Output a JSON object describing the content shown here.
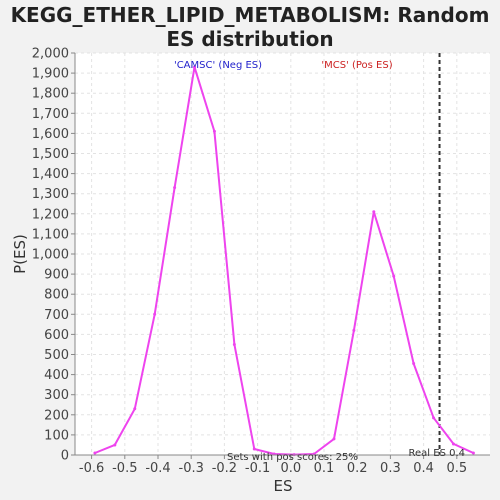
{
  "chart_data": {
    "type": "line",
    "title_lines": [
      "KEGG_ETHER_LIPID_METABOLISM: Random",
      "ES distribution"
    ],
    "xlabel": "ES",
    "ylabel": "P(ES)",
    "xlim": [
      -0.65,
      0.6
    ],
    "ylim": [
      0,
      2000
    ],
    "x_ticks": [
      -0.6,
      -0.5,
      -0.4,
      -0.3,
      -0.2,
      -0.1,
      0.0,
      0.1,
      0.2,
      0.3,
      0.4,
      0.5
    ],
    "x_tick_labels": [
      "-0.6",
      "-0.5",
      "-0.4",
      "-0.3",
      "-0.2",
      "-0.1",
      "0.0",
      "0.1",
      "0.2",
      "0.3",
      "0.4",
      "0.5"
    ],
    "y_ticks": [
      0,
      100,
      200,
      300,
      400,
      500,
      600,
      700,
      800,
      900,
      1000,
      1100,
      1200,
      1300,
      1400,
      1500,
      1600,
      1700,
      1800,
      1900,
      2000
    ],
    "y_tick_labels": [
      "0",
      "100",
      "200",
      "300",
      "400",
      "500",
      "600",
      "700",
      "800",
      "900",
      "1,000",
      "1,100",
      "1,200",
      "1,300",
      "1,400",
      "1,500",
      "1,600",
      "1,700",
      "1,800",
      "1,900",
      "2,000"
    ],
    "grid": true,
    "series": [
      {
        "color": "#ee44ee",
        "x": [
          -0.59,
          -0.53,
          -0.47,
          -0.41,
          -0.35,
          -0.29,
          -0.23,
          -0.17,
          -0.11,
          -0.05,
          0.01,
          0.07,
          0.13,
          0.19,
          0.25,
          0.31,
          0.37,
          0.43,
          0.49,
          0.55
        ],
        "y": [
          10,
          50,
          230,
          700,
          1330,
          1930,
          1610,
          550,
          30,
          5,
          2,
          5,
          80,
          620,
          1210,
          890,
          455,
          185,
          55,
          10
        ]
      }
    ],
    "real_es": {
      "x": 0.448,
      "color": "#333333",
      "label": "Real ES 0.4"
    },
    "annotations": {
      "neg": {
        "text": "'CAMSC' (Neg ES)",
        "color": "#2222cc"
      },
      "pos": {
        "text": "'MCS' (Pos ES)",
        "color": "#cc2222"
      },
      "bottom": {
        "text": "Sets with pos scores: 25%",
        "color": "#333333"
      }
    }
  }
}
